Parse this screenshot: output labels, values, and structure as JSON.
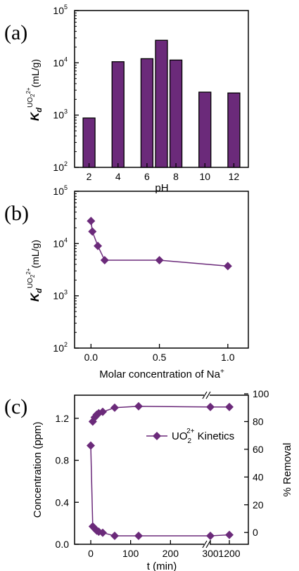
{
  "colors": {
    "purple": "#6b2a7a",
    "fill": "#6b2a7a",
    "axis": "#000000"
  },
  "chart_data": [
    {
      "panel_label": "(a)",
      "type": "bar",
      "categories": [
        "2",
        "4",
        "6",
        "7",
        "8",
        "10",
        "12"
      ],
      "x": [
        2,
        4,
        6,
        7,
        8,
        10,
        12
      ],
      "values": [
        880,
        10500,
        12000,
        27000,
        11300,
        2750,
        2650
      ],
      "xlabel": "pH",
      "ylabel_parts": {
        "main": "K",
        "sub": "d",
        "sup": "UO",
        "sup_sub": "2",
        "sup_sup": "2+",
        "unit": "(mL/g)"
      },
      "y_scale": "log",
      "ylim": [
        100,
        100000
      ],
      "x_ticks": [
        2,
        4,
        6,
        8,
        10,
        12
      ],
      "x_tick_labels": [
        "2",
        "4",
        "6",
        "8",
        "10",
        "12"
      ],
      "y_ticks": [
        100,
        1000,
        10000,
        100000
      ],
      "y_tick_labels": [
        [
          "10",
          "2"
        ],
        [
          "10",
          "3"
        ],
        [
          "10",
          "4"
        ],
        [
          "10",
          "5"
        ]
      ]
    },
    {
      "panel_label": "(b)",
      "type": "line",
      "x": [
        0,
        0.01,
        0.05,
        0.1,
        0.5,
        1.0
      ],
      "values": [
        27000,
        17000,
        9000,
        4800,
        4800,
        3700
      ],
      "xlabel": "Molar concentration of Na",
      "xlabel_sup": "+",
      "ylabel_parts": {
        "main": "K",
        "sub": "d",
        "sup": "UO",
        "sup_sub": "2",
        "sup_sup": "2+",
        "unit": "(mL/g)"
      },
      "y_scale": "log",
      "ylim": [
        100,
        100000
      ],
      "x_ticks": [
        0.0,
        0.5,
        1.0
      ],
      "x_tick_labels": [
        "0.0",
        "0.5",
        "1.0"
      ],
      "y_ticks": [
        100,
        1000,
        10000,
        100000
      ],
      "y_tick_labels": [
        [
          "10",
          "2"
        ],
        [
          "10",
          "3"
        ],
        [
          "10",
          "4"
        ],
        [
          "10",
          "5"
        ]
      ]
    },
    {
      "panel_label": "(c)",
      "type": "line",
      "x": [
        0,
        5,
        10,
        15,
        20,
        30,
        60,
        120,
        300,
        1200
      ],
      "series": [
        {
          "name": "UO2 2+ Kinetics",
          "axis": "left",
          "values": [
            0.94,
            0.17,
            0.15,
            0.13,
            0.12,
            0.11,
            0.08,
            0.08,
            0.08,
            0.09
          ]
        },
        {
          "axis": "right",
          "values": [
            null,
            80,
            83,
            85,
            86,
            87,
            90,
            91,
            90.5,
            90.5
          ]
        }
      ],
      "legend_label": {
        "base": "UO",
        "sub": "2",
        "sup": "2+",
        "rest": " Kinetics"
      },
      "legend_position": "upper-right",
      "xlabel": "t (min)",
      "ylabel_left": "Concentration (ppm)",
      "ylabel_right": "% Removal",
      "ylim_left": [
        0.0,
        1.42
      ],
      "ylim_right": [
        -8.5,
        99
      ],
      "x_axis_break": [
        300,
        1200
      ],
      "x_ticks": [
        0,
        100,
        200,
        300,
        1200
      ],
      "x_tick_labels": [
        "0",
        "100",
        "200",
        "300",
        "1200"
      ],
      "y_ticks_left": [
        0.0,
        0.4,
        0.8,
        1.2
      ],
      "y_tick_labels_left": [
        "0.0",
        "0.4",
        "0.8",
        "1.2"
      ],
      "y_ticks_right": [
        0,
        20,
        40,
        60,
        80,
        100
      ],
      "y_tick_labels_right": [
        "0",
        "20",
        "40",
        "60",
        "80",
        "100"
      ]
    }
  ]
}
